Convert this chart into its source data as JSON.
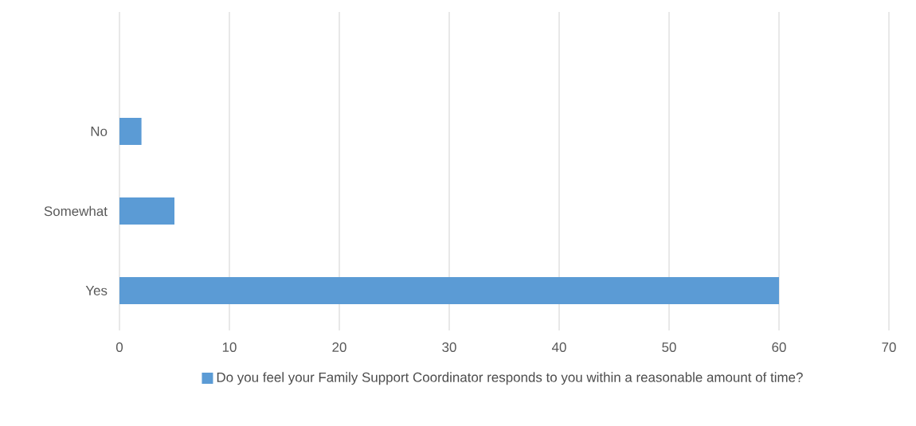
{
  "chart_data": {
    "type": "bar",
    "orientation": "horizontal",
    "categories": [
      "No",
      "Somewhat",
      "Yes"
    ],
    "series": [
      {
        "name": "Do you feel your Family Support Coordinator responds to you within a reasonable amount of time?",
        "color": "#5b9bd5",
        "values": [
          2,
          5,
          60
        ]
      }
    ],
    "xlim": [
      0,
      70
    ],
    "xticks": [
      0,
      10,
      20,
      30,
      40,
      50,
      60,
      70
    ],
    "grid": "x",
    "legend": "bottom"
  }
}
